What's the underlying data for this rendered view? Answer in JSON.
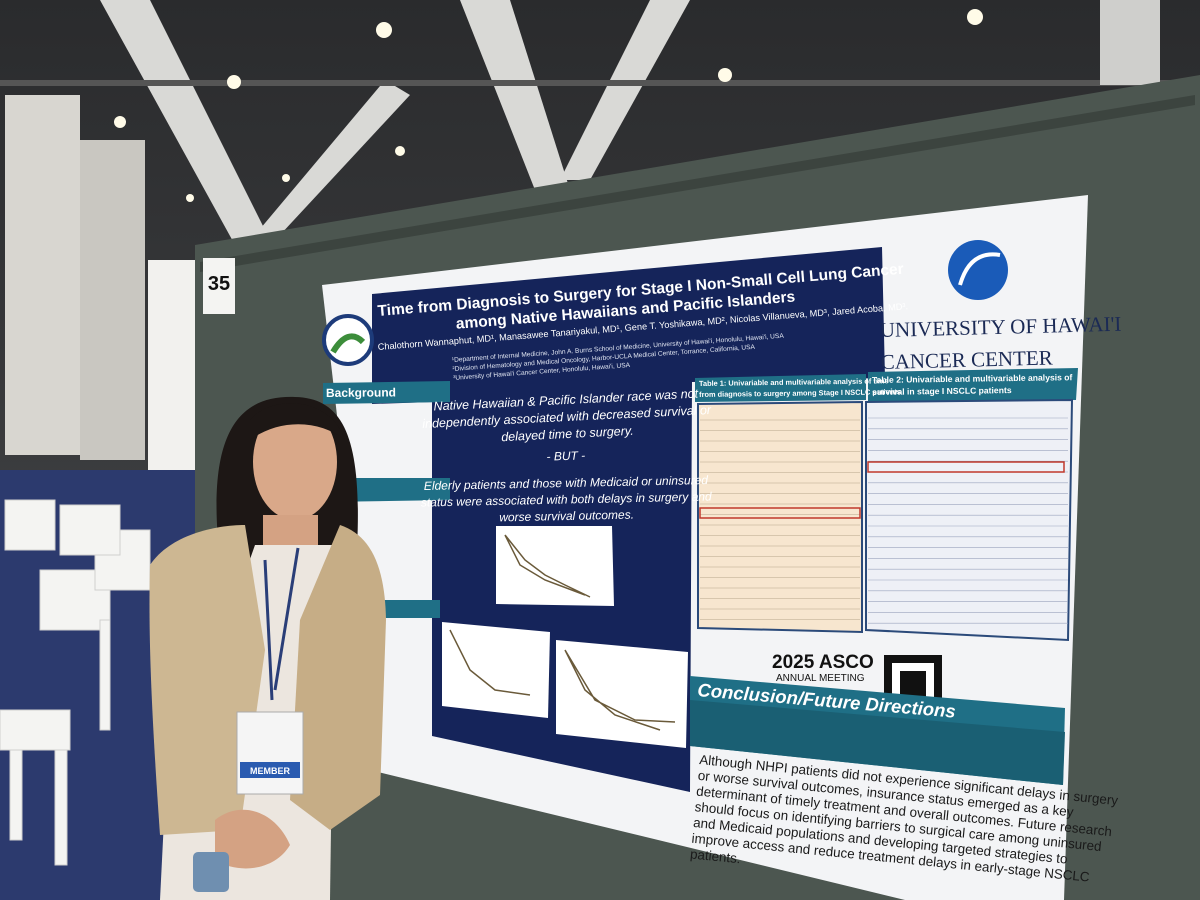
{
  "board_number": "35",
  "poster": {
    "title_lines": [
      "Time from Diagnosis to Surgery for Stage I Non-Small Cell Lung Cancer",
      "among Native Hawaiians and Pacific Islanders"
    ],
    "authors": "Chalothorn Wannaphut, MD¹, Manasawee Tanariyakul, MD¹, Gene T. Yoshikawa, MD², Nicolas Villanueva, MD³, Jared Acoba, MD³.",
    "affiliations": [
      "¹Department of Internal Medicine, John A. Burns School of Medicine, University of Hawai'i, Honolulu, Hawai'i, USA",
      "²Division of Hematology and Medical Oncology, Harbor-UCLA Medical Center, Torrance, California, USA",
      "³University of Hawai'i Cancer Center, Honolulu, Hawai'i, USA"
    ],
    "institution": [
      "UNIVERSITY OF HAWAI'I",
      "CANCER CENTER"
    ],
    "background_heading": "Background",
    "key_finding": [
      "Native Hawaiian & Pacific Islander race was not",
      "independently associated with decreased survival or",
      "delayed time to surgery."
    ],
    "but": "- BUT -",
    "secondary_finding": [
      "Elderly patients and those with Medicaid or uninsured",
      "status were associated with both delays in surgery and",
      "worse survival outcomes."
    ],
    "table1_title": [
      "Table 1: Univariable and multivariable analysis of time",
      "from diagnosis to surgery among Stage I NSCLC patients"
    ],
    "table2_title": [
      "Table 2: Univariable and multivariable analysis of",
      "survival in stage I NSCLC patients"
    ],
    "meeting": [
      "2025 ASCO",
      "ANNUAL MEETING"
    ],
    "conclusion_heading": "Conclusion/Future Directions",
    "conclusion_lines": [
      "Although NHPI patients did not experience significant delays in surgery",
      "or worse survival outcomes, insurance status emerged as a key",
      "determinant of timely treatment and overall outcomes. Future research",
      "should focus on identifying barriers to surgical care among uninsured",
      "and Medicaid populations and developing targeted strategies to",
      "improve access and reduce treatment delays in early-stage NSCLC",
      "patients."
    ]
  },
  "badge": "MEMBER"
}
